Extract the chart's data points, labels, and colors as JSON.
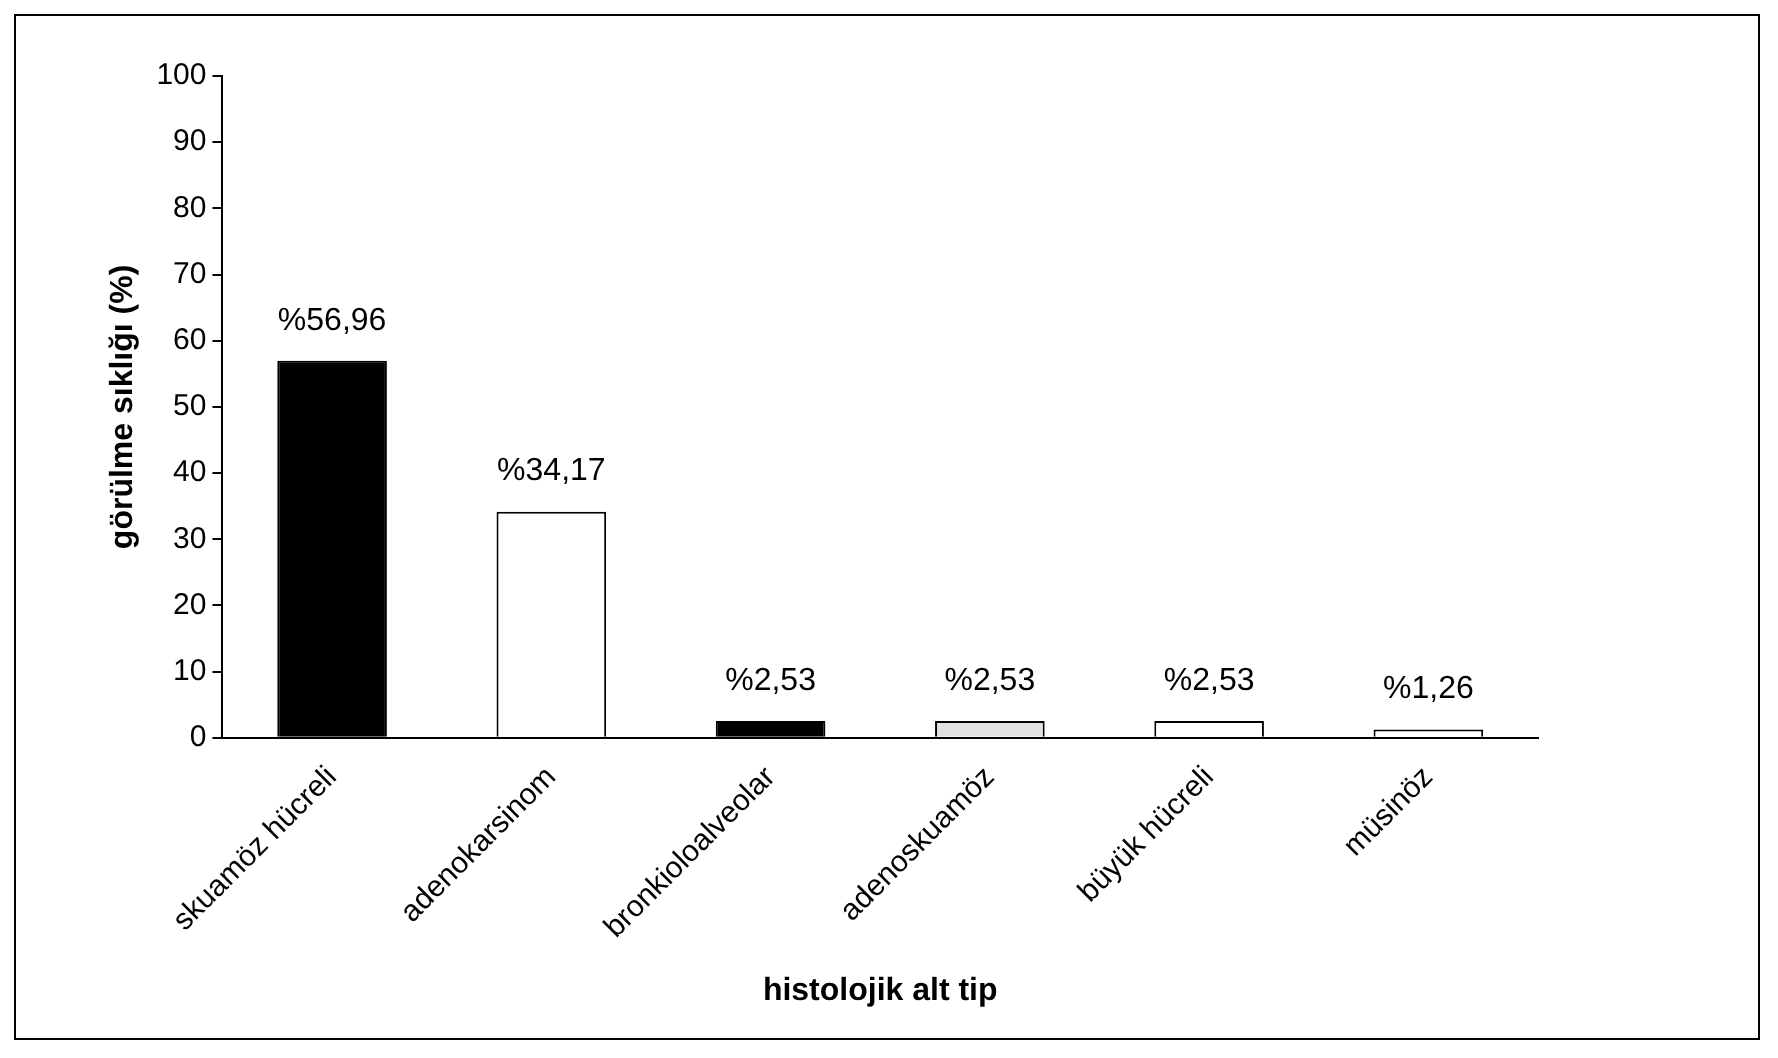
{
  "chart_data": {
    "type": "bar",
    "xlabel": "histolojik alt tip",
    "ylabel": "görülme sıklığı (%)",
    "categories": [
      "skuamöz hücreli",
      "adenokarsinom",
      "bronkioloalveolar",
      "adenoskuamöz",
      "büyük hücreli",
      "müsinöz"
    ],
    "values": [
      56.96,
      34.17,
      2.53,
      2.53,
      2.53,
      1.26
    ],
    "colors": [
      "#000000",
      "#ffffff",
      "#000000",
      "#e0e0e0",
      "#ffffff",
      "#ffffff"
    ],
    "value_labels": [
      "%56,96",
      "%34,17",
      "%2,53",
      "%2,53",
      "%2,53",
      "%1,26"
    ],
    "ylim": [
      0,
      100
    ],
    "yticks": [
      0,
      10,
      20,
      30,
      40,
      50,
      60,
      70,
      80,
      90,
      100
    ],
    "grid": false,
    "legend": false
  }
}
